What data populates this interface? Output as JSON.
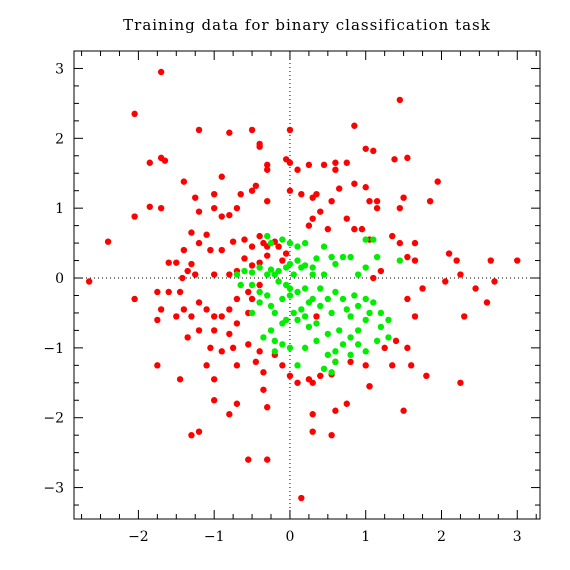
{
  "chart_data": {
    "type": "scatter",
    "title": "Training data for binary classification task",
    "xlabel": "",
    "ylabel": "",
    "xlim": [
      -2.85,
      3.3
    ],
    "ylim": [
      -3.45,
      3.25
    ],
    "xticks": [
      -2,
      -1,
      0,
      1,
      2,
      3
    ],
    "yticks": [
      -3,
      -2,
      -1,
      0,
      1,
      2,
      3
    ],
    "xtick_labels": [
      "−2",
      "−1",
      "0",
      "1",
      "2",
      "3"
    ],
    "ytick_labels": [
      "−3",
      "−2",
      "−1",
      "0",
      "1",
      "2",
      "3"
    ],
    "grid": false,
    "zero_lines": true,
    "legend": "none",
    "series": [
      {
        "color": "#ff0000",
        "points": [
          [
            -1.7,
            2.95
          ],
          [
            -2.05,
            2.35
          ],
          [
            -1.2,
            2.12
          ],
          [
            -1.85,
            1.65
          ],
          [
            -1.7,
            1.72
          ],
          [
            -1.65,
            1.68
          ],
          [
            -0.5,
            2.12
          ],
          [
            -0.8,
            2.08
          ],
          [
            0.25,
            1.62
          ],
          [
            0.0,
            2.12
          ],
          [
            0.85,
            2.18
          ],
          [
            1.0,
            1.85
          ],
          [
            1.1,
            1.82
          ],
          [
            1.55,
            1.72
          ],
          [
            1.45,
            2.55
          ],
          [
            1.38,
            1.7
          ],
          [
            0.75,
            1.65
          ],
          [
            0.6,
            1.65
          ],
          [
            0.6,
            1.55
          ],
          [
            0.45,
            1.62
          ],
          [
            0.1,
            1.55
          ],
          [
            0.0,
            1.65
          ],
          [
            -0.05,
            1.7
          ],
          [
            -0.4,
            1.88
          ],
          [
            -0.4,
            1.92
          ],
          [
            -0.3,
            1.62
          ],
          [
            -0.3,
            1.55
          ],
          [
            -1.85,
            1.02
          ],
          [
            -1.7,
            1.0
          ],
          [
            -2.05,
            0.88
          ],
          [
            -1.4,
            1.38
          ],
          [
            -1.25,
            1.15
          ],
          [
            -1.0,
            1.2
          ],
          [
            -0.9,
            1.45
          ],
          [
            -0.65,
            1.2
          ],
          [
            -0.7,
            1.0
          ],
          [
            -0.8,
            0.9
          ],
          [
            -0.9,
            0.88
          ],
          [
            -1.0,
            1.0
          ],
          [
            -1.2,
            0.95
          ],
          [
            -1.3,
            0.65
          ],
          [
            -1.1,
            0.62
          ],
          [
            -0.5,
            1.25
          ],
          [
            -0.45,
            1.32
          ],
          [
            -0.3,
            1.1
          ],
          [
            0.0,
            1.25
          ],
          [
            0.15,
            1.2
          ],
          [
            0.3,
            1.15
          ],
          [
            0.35,
            1.2
          ],
          [
            0.55,
            1.1
          ],
          [
            0.65,
            1.28
          ],
          [
            0.85,
            1.35
          ],
          [
            1.0,
            1.3
          ],
          [
            1.05,
            1.1
          ],
          [
            1.15,
            1.1
          ],
          [
            1.15,
            1.0
          ],
          [
            1.45,
            1.0
          ],
          [
            1.5,
            1.15
          ],
          [
            1.95,
            1.38
          ],
          [
            1.85,
            1.1
          ],
          [
            0.4,
            0.95
          ],
          [
            0.3,
            0.85
          ],
          [
            0.25,
            0.75
          ],
          [
            0.5,
            0.7
          ],
          [
            0.75,
            0.85
          ],
          [
            0.85,
            0.7
          ],
          [
            0.95,
            0.7
          ],
          [
            1.05,
            0.55
          ],
          [
            1.35,
            0.6
          ],
          [
            1.45,
            0.5
          ],
          [
            1.65,
            0.5
          ],
          [
            -2.4,
            0.52
          ],
          [
            -2.65,
            -0.05
          ],
          [
            -1.5,
            0.22
          ],
          [
            -1.4,
            0.4
          ],
          [
            -1.2,
            0.5
          ],
          [
            -1.05,
            0.4
          ],
          [
            -0.9,
            0.4
          ],
          [
            -0.75,
            0.52
          ],
          [
            -0.6,
            0.55
          ],
          [
            -0.5,
            0.45
          ],
          [
            -0.4,
            0.6
          ],
          [
            -0.35,
            0.5
          ],
          [
            -0.3,
            0.45
          ],
          [
            -0.2,
            0.52
          ],
          [
            -0.15,
            0.45
          ],
          [
            -0.1,
            0.25
          ],
          [
            -0.05,
            0.35
          ],
          [
            -0.3,
            0.32
          ],
          [
            -0.4,
            0.22
          ],
          [
            -0.5,
            0.18
          ],
          [
            -0.6,
            0.28
          ],
          [
            -0.7,
            0.1
          ],
          [
            -0.8,
            0.05
          ],
          [
            -1.0,
            0.05
          ],
          [
            -1.25,
            0.05
          ],
          [
            -1.3,
            0.2
          ],
          [
            -1.6,
            0.22
          ],
          [
            -1.42,
            0.0
          ],
          [
            -1.35,
            0.1
          ],
          [
            -1.45,
            -0.2
          ],
          [
            -1.6,
            -0.2
          ],
          [
            -2.05,
            -0.3
          ],
          [
            -1.75,
            -0.2
          ],
          [
            -1.7,
            -0.45
          ],
          [
            -1.75,
            -0.6
          ],
          [
            -1.5,
            -0.55
          ],
          [
            -1.4,
            -0.45
          ],
          [
            -1.3,
            -0.55
          ],
          [
            -1.2,
            -0.35
          ],
          [
            -1.1,
            -0.45
          ],
          [
            -1.0,
            -0.55
          ],
          [
            -0.9,
            -0.55
          ],
          [
            -0.8,
            -0.45
          ],
          [
            -0.7,
            -0.3
          ],
          [
            -0.55,
            -0.2
          ],
          [
            -0.5,
            -0.3
          ],
          [
            -0.4,
            -0.1
          ],
          [
            -0.55,
            -0.5
          ],
          [
            -0.7,
            -0.65
          ],
          [
            -0.8,
            -0.8
          ],
          [
            -1.0,
            -0.75
          ],
          [
            -1.2,
            -0.75
          ],
          [
            -1.35,
            -0.85
          ],
          [
            -1.05,
            -1.0
          ],
          [
            -0.9,
            -1.05
          ],
          [
            -0.75,
            -1.0
          ],
          [
            -0.55,
            -0.95
          ],
          [
            -0.4,
            -1.05
          ],
          [
            -0.45,
            -1.2
          ],
          [
            -0.2,
            -1.1
          ],
          [
            -0.1,
            -1.25
          ],
          [
            0.0,
            -1.4
          ],
          [
            0.1,
            -1.5
          ],
          [
            0.25,
            -1.45
          ],
          [
            0.3,
            -1.5
          ],
          [
            0.4,
            -1.4
          ],
          [
            0.55,
            -1.38
          ],
          [
            0.6,
            -1.2
          ],
          [
            0.8,
            -1.2
          ],
          [
            1.0,
            -1.25
          ],
          [
            1.05,
            -1.55
          ],
          [
            1.35,
            -1.25
          ],
          [
            1.25,
            -1.0
          ],
          [
            1.4,
            -0.9
          ],
          [
            1.55,
            -1.0
          ],
          [
            1.6,
            -1.25
          ],
          [
            1.8,
            -1.4
          ],
          [
            1.65,
            -0.55
          ],
          [
            1.55,
            -0.3
          ],
          [
            1.75,
            -0.15
          ],
          [
            2.05,
            -0.05
          ],
          [
            2.25,
            0.05
          ],
          [
            2.3,
            -0.55
          ],
          [
            2.45,
            -0.15
          ],
          [
            2.6,
            -0.35
          ],
          [
            2.7,
            -0.05
          ],
          [
            2.65,
            0.25
          ],
          [
            3.0,
            0.25
          ],
          [
            2.1,
            0.35
          ],
          [
            2.2,
            0.25
          ],
          [
            1.65,
            0.25
          ],
          [
            1.55,
            0.3
          ],
          [
            1.2,
            0.1
          ],
          [
            1.1,
            0.0
          ],
          [
            1.5,
            -1.9
          ],
          [
            1.05,
            -1.55
          ],
          [
            0.75,
            -1.8
          ],
          [
            0.6,
            -1.9
          ],
          [
            0.55,
            -2.25
          ],
          [
            0.3,
            -2.2
          ],
          [
            0.3,
            -1.95
          ],
          [
            -0.3,
            -1.85
          ],
          [
            -0.35,
            -1.6
          ],
          [
            -0.7,
            -1.8
          ],
          [
            -0.8,
            -1.95
          ],
          [
            -1.0,
            -1.75
          ],
          [
            -1.0,
            -1.45
          ],
          [
            -1.2,
            -2.2
          ],
          [
            -1.3,
            -2.25
          ],
          [
            -1.1,
            -1.25
          ],
          [
            -1.45,
            -1.45
          ],
          [
            -1.75,
            -1.25
          ],
          [
            -0.7,
            -1.25
          ],
          [
            -0.55,
            -2.6
          ],
          [
            -0.3,
            -2.6
          ],
          [
            0.15,
            -3.15
          ],
          [
            2.25,
            -1.5
          ],
          [
            0.35,
            -0.55
          ],
          [
            -0.35,
            -1.35
          ]
        ]
      },
      {
        "color": "#00ee00",
        "points": [
          [
            -0.3,
            0.6
          ],
          [
            -0.25,
            0.5
          ],
          [
            -0.1,
            0.55
          ],
          [
            0.0,
            0.5
          ],
          [
            0.1,
            0.45
          ],
          [
            0.2,
            0.5
          ],
          [
            0.45,
            0.45
          ],
          [
            0.55,
            0.3
          ],
          [
            0.6,
            0.2
          ],
          [
            0.35,
            0.28
          ],
          [
            0.3,
            0.15
          ],
          [
            0.2,
            0.18
          ],
          [
            0.15,
            0.15
          ],
          [
            0.1,
            0.25
          ],
          [
            0.0,
            0.2
          ],
          [
            -0.05,
            0.15
          ],
          [
            -0.15,
            0.1
          ],
          [
            -0.2,
            0.05
          ],
          [
            -0.25,
            0.12
          ],
          [
            -0.3,
            0.05
          ],
          [
            -0.4,
            0.15
          ],
          [
            -0.5,
            0.08
          ],
          [
            -0.6,
            0.1
          ],
          [
            -0.7,
            0.05
          ],
          [
            -0.65,
            -0.1
          ],
          [
            -0.5,
            -0.1
          ],
          [
            -0.4,
            -0.2
          ],
          [
            -0.3,
            -0.25
          ],
          [
            -0.4,
            -0.35
          ],
          [
            -0.25,
            -0.4
          ],
          [
            -0.2,
            -0.5
          ],
          [
            -0.1,
            -0.3
          ],
          [
            0.0,
            -0.25
          ],
          [
            0.1,
            -0.2
          ],
          [
            0.2,
            -0.15
          ],
          [
            0.3,
            -0.3
          ],
          [
            0.4,
            -0.4
          ],
          [
            0.5,
            -0.3
          ],
          [
            0.6,
            -0.2
          ],
          [
            0.7,
            -0.3
          ],
          [
            0.75,
            -0.45
          ],
          [
            0.8,
            -0.55
          ],
          [
            0.9,
            -0.4
          ],
          [
            1.0,
            -0.3
          ],
          [
            1.1,
            -0.35
          ],
          [
            1.2,
            -0.5
          ],
          [
            1.0,
            -0.6
          ],
          [
            0.9,
            -0.75
          ],
          [
            0.8,
            -0.85
          ],
          [
            0.7,
            -0.95
          ],
          [
            0.6,
            -1.05
          ],
          [
            0.5,
            -1.1
          ],
          [
            0.35,
            -0.9
          ],
          [
            0.25,
            -0.7
          ],
          [
            0.2,
            -0.55
          ],
          [
            0.1,
            -0.6
          ],
          [
            0.05,
            -0.5
          ],
          [
            -0.05,
            -0.6
          ],
          [
            -0.1,
            -0.65
          ],
          [
            -0.25,
            -0.75
          ],
          [
            -0.2,
            -0.9
          ],
          [
            -0.1,
            -0.95
          ],
          [
            0.0,
            -1.0
          ],
          [
            0.2,
            -1.0
          ],
          [
            0.45,
            -1.3
          ],
          [
            0.55,
            -1.35
          ],
          [
            0.6,
            -1.2
          ],
          [
            0.8,
            -1.1
          ],
          [
            1.0,
            -1.05
          ],
          [
            1.15,
            -0.9
          ],
          [
            1.3,
            -0.85
          ],
          [
            1.2,
            -0.7
          ],
          [
            1.3,
            -0.6
          ],
          [
            0.85,
            -0.25
          ],
          [
            0.9,
            0.05
          ],
          [
            1.0,
            0.15
          ],
          [
            0.8,
            0.3
          ],
          [
            0.7,
            0.3
          ],
          [
            1.0,
            0.55
          ],
          [
            1.1,
            0.55
          ],
          [
            1.15,
            0.3
          ],
          [
            1.45,
            0.25
          ],
          [
            0.45,
            0.05
          ],
          [
            0.3,
            0.05
          ],
          [
            0.05,
            0.05
          ],
          [
            -0.15,
            -0.05
          ],
          [
            0.0,
            -0.15
          ],
          [
            0.4,
            -0.15
          ],
          [
            0.55,
            -0.5
          ],
          [
            0.65,
            -0.75
          ],
          [
            0.9,
            -0.95
          ],
          [
            -0.5,
            -0.5
          ],
          [
            -0.35,
            -0.85
          ],
          [
            -0.2,
            -1.05
          ],
          [
            0.1,
            -1.25
          ],
          [
            0.5,
            -0.8
          ],
          [
            0.35,
            -0.65
          ],
          [
            0.25,
            -0.35
          ],
          [
            0.15,
            -0.45
          ],
          [
            -0.05,
            -0.1
          ],
          [
            1.05,
            -0.5
          ]
        ]
      }
    ]
  }
}
